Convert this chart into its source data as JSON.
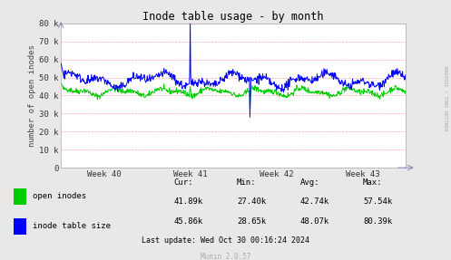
{
  "title": "Inode table usage - by month",
  "ylabel": "number of open inodes",
  "xlabel_ticks": [
    "Week 40",
    "Week 41",
    "Week 42",
    "Week 43"
  ],
  "ylim": [
    0,
    80000
  ],
  "yticks": [
    0,
    10000,
    20000,
    30000,
    40000,
    50000,
    60000,
    70000,
    80000
  ],
  "ytick_labels": [
    "0",
    "10 k",
    "20 k",
    "30 k",
    "40 k",
    "50 k",
    "60 k",
    "70 k",
    "80 k"
  ],
  "bg_color": "#e8e8e8",
  "plot_bg_color": "#ffffff",
  "grid_color": "#ffaaaa",
  "title_color": "#000000",
  "green_color": "#00cc00",
  "blue_color": "#0000ff",
  "side_label": "RRDTOOL / TOBI OETIKER",
  "legend": [
    {
      "label": "open inodes",
      "color": "#00cc00"
    },
    {
      "label": "inode table size",
      "color": "#0000ff"
    }
  ],
  "stats_headers": [
    "Cur:",
    "Min:",
    "Avg:",
    "Max:"
  ],
  "stats": [
    [
      "41.89k",
      "27.40k",
      "42.74k",
      "57.54k"
    ],
    [
      "45.86k",
      "28.65k",
      "48.07k",
      "80.39k"
    ]
  ],
  "footer": "Last update: Wed Oct 30 00:16:24 2024",
  "munin_version": "Munin 2.0.57",
  "n_points": 700
}
